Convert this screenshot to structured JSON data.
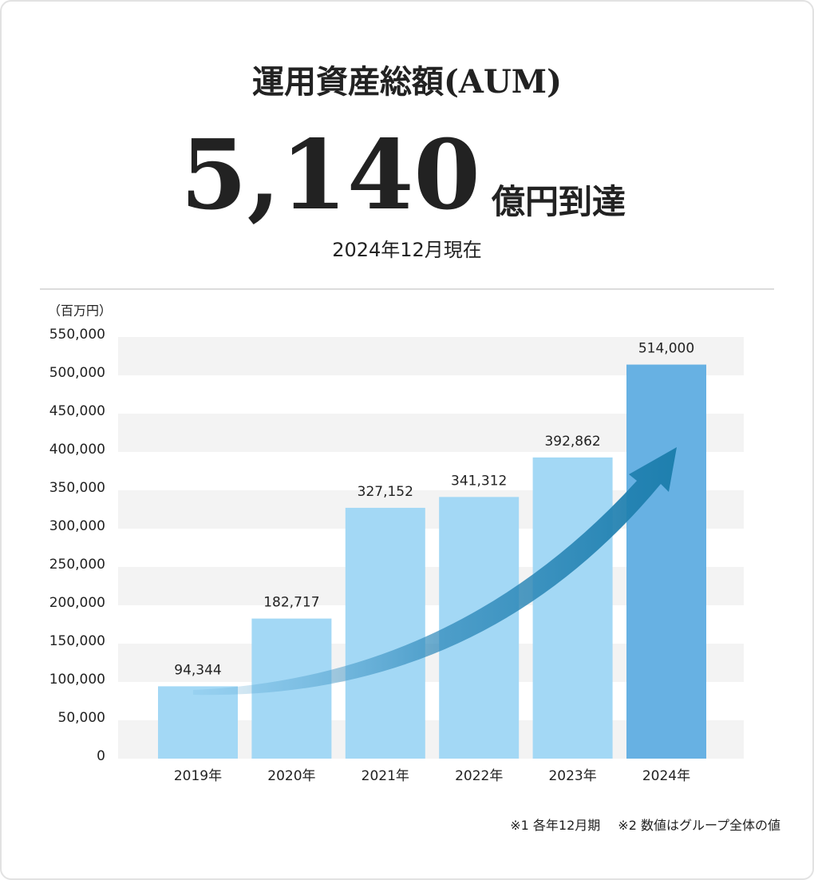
{
  "header": {
    "title": "運用資産総額(AUM)",
    "value": "5,140",
    "unit": "億円到達",
    "date": "2024年12月現在"
  },
  "chart_data": {
    "type": "bar",
    "y_label": "（百万円）",
    "categories": [
      "2019年",
      "2020年",
      "2021年",
      "2022年",
      "2023年",
      "2024年"
    ],
    "values": [
      94344,
      182717,
      327152,
      341312,
      392862,
      514000
    ],
    "value_labels": [
      "94,344",
      "182,717",
      "327,152",
      "341,312",
      "392,862",
      "514,000"
    ],
    "colors": [
      "#a3d8f5",
      "#a3d8f5",
      "#a3d8f5",
      "#a3d8f5",
      "#a3d8f5",
      "#67b1e3"
    ],
    "ylim": [
      0,
      550000
    ],
    "yticks": [
      0,
      {
        "value": 50000,
        "label": "50,000"
      },
      {
        "value": 100000,
        "label": "100,000"
      },
      {
        "value": 150000,
        "label": "150,000"
      },
      {
        "value": 200000,
        "label": "200,000"
      },
      {
        "value": 250000,
        "label": "250,000"
      },
      {
        "value": 300000,
        "label": "300,000"
      },
      {
        "value": 350000,
        "label": "350,000"
      },
      {
        "value": 400000,
        "label": "400,000"
      },
      {
        "value": 450000,
        "label": "450,000"
      },
      {
        "value": 500000,
        "label": "500,000"
      },
      {
        "value": 550000,
        "label": "550,000"
      }
    ],
    "grid": true
  },
  "notes": [
    "※1 各年12月期",
    "※2 数値はグループ全体の値"
  ]
}
